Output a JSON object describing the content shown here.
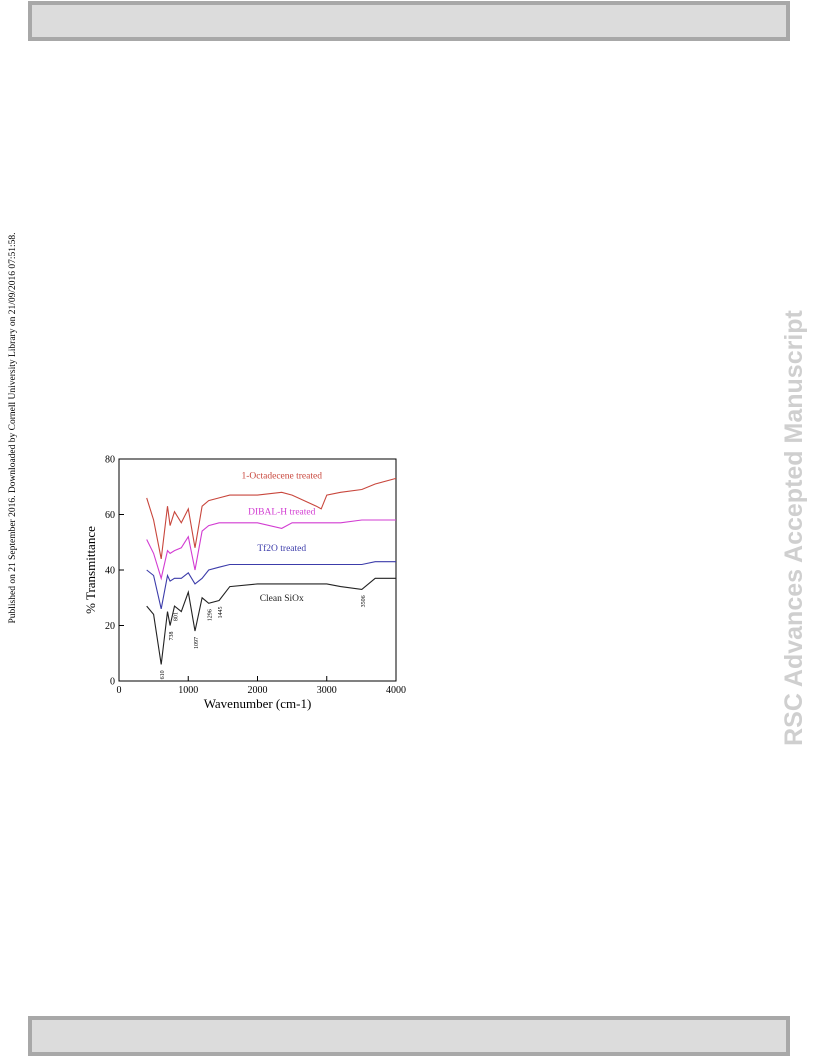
{
  "page": {
    "side_note": "Published on 21 September 2016. Downloaded by Cornell University Library on 21/09/2016 07:51:58.",
    "watermark": "RSC Advances Accepted Manuscript"
  },
  "chart_data": {
    "type": "line",
    "x_label": "Wavenumber (cm-1)",
    "y_label": "% Transmittance",
    "x": [
      400,
      500,
      610,
      700,
      738,
      801,
      900,
      1000,
      1097,
      1200,
      1296,
      1445,
      1600,
      2000,
      2350,
      2500,
      2850,
      2920,
      3000,
      3200,
      3506,
      3700,
      4000
    ],
    "series": [
      {
        "name": "1-Octadecene treated",
        "color": "#c8463c",
        "values": [
          66,
          58,
          44,
          63,
          56,
          61,
          57,
          62,
          48,
          63,
          65,
          66,
          67,
          67,
          68,
          67,
          63,
          62,
          67,
          68,
          69,
          71,
          73
        ]
      },
      {
        "name": "DIBAL-H treated",
        "color": "#d23cd2",
        "values": [
          51,
          46,
          37,
          47,
          46,
          47,
          48,
          52,
          40,
          54,
          56,
          57,
          57,
          57,
          55,
          57,
          57,
          57,
          57,
          57,
          58,
          58,
          58
        ]
      },
      {
        "name": "Tf2O treated",
        "color": "#3c3caa",
        "values": [
          40,
          38,
          26,
          38,
          36,
          37,
          37,
          39,
          35,
          37,
          40,
          41,
          42,
          42,
          42,
          42,
          42,
          42,
          42,
          42,
          42,
          43,
          43
        ]
      },
      {
        "name": "Clean SiOx",
        "color": "#222222",
        "values": [
          27,
          24,
          6,
          25,
          20,
          27,
          25,
          32,
          18,
          30,
          28,
          29,
          34,
          35,
          35,
          35,
          35,
          35,
          35,
          34,
          33,
          37,
          37
        ]
      }
    ],
    "annotations": [
      {
        "label": "610",
        "x": 610
      },
      {
        "label": "738",
        "x": 738
      },
      {
        "label": "801",
        "x": 801
      },
      {
        "label": "1097",
        "x": 1097
      },
      {
        "label": "1296",
        "x": 1296
      },
      {
        "label": "1445",
        "x": 1445
      },
      {
        "label": "3506",
        "x": 3506
      }
    ],
    "xlim": [
      0,
      4000
    ],
    "xticks": [
      0,
      1000,
      2000,
      3000,
      4000
    ],
    "ylim": [
      0,
      80
    ],
    "yticks": [
      0,
      20,
      40,
      60,
      80
    ],
    "grid": false
  }
}
